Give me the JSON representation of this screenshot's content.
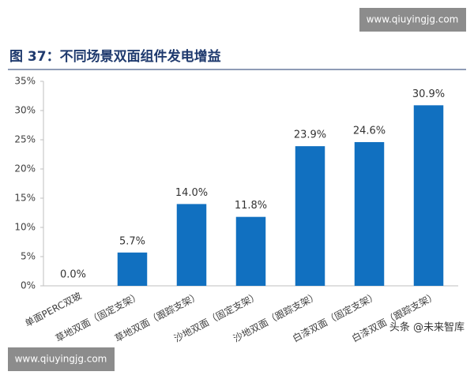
{
  "chart_data": {
    "type": "bar",
    "title": "图 37：不同场景双面组件发电增益",
    "categories": [
      "单面PERC双玻",
      "草地双面（固定支架）",
      "草地双面（跟踪支架）",
      "沙地双面（固定支架）",
      "沙地双面（跟踪支架）",
      "白漆双面（固定支架）",
      "白漆双面（跟踪支架）"
    ],
    "values": [
      0.0,
      5.7,
      14.0,
      11.8,
      23.9,
      24.6,
      30.9
    ],
    "value_labels": [
      "0.0%",
      "5.7%",
      "14.0%",
      "11.8%",
      "23.9%",
      "24.6%",
      "30.9%"
    ],
    "color": "#1170c0",
    "ylim": [
      0,
      35
    ],
    "yticks": [
      {
        "value": 0,
        "label": "0%"
      },
      {
        "value": 5,
        "label": "5%"
      },
      {
        "value": 10,
        "label": "10%"
      },
      {
        "value": 15,
        "label": "15%"
      },
      {
        "value": 20,
        "label": "20%"
      },
      {
        "value": 25,
        "label": "25%"
      },
      {
        "value": 30,
        "label": "30%"
      },
      {
        "value": 35,
        "label": "35%"
      }
    ],
    "grid": false
  },
  "watermarks": [
    "www.qiuyingjg.com",
    "www.qiuyingjg.com",
    "头条 @未来智库"
  ]
}
